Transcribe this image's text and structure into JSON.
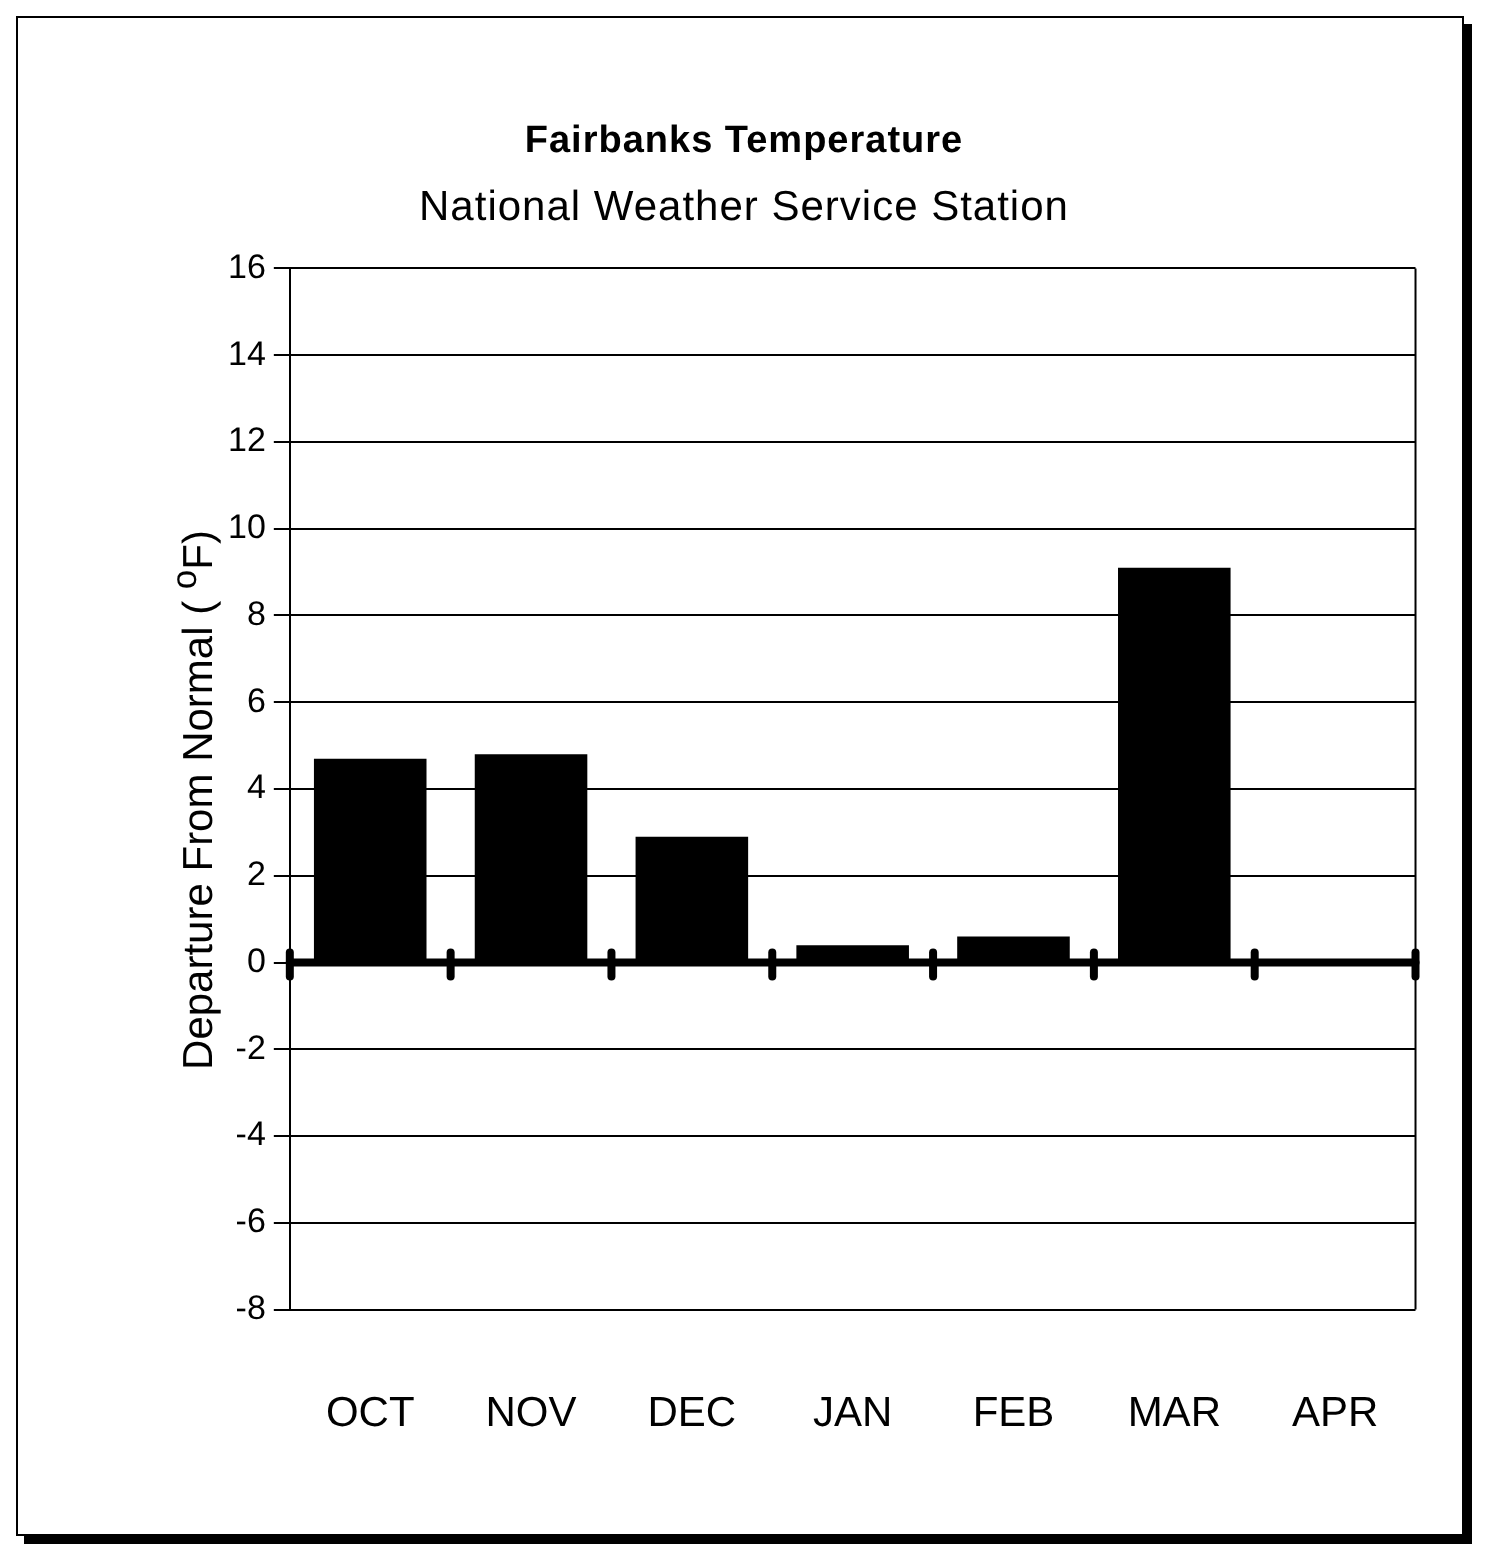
{
  "chart_data": {
    "type": "bar",
    "title": "Fairbanks Temperature",
    "subtitle": "National Weather Service Station",
    "ylabel": "Departure From Normal ( $^{o}$F)",
    "categories": [
      "OCT",
      "NOV",
      "DEC",
      "JAN",
      "FEB",
      "MAR",
      "APR"
    ],
    "values": [
      4.7,
      4.8,
      2.9,
      0.4,
      0.6,
      9.1,
      null
    ],
    "color": "#000000",
    "ylim": [
      -8,
      16
    ],
    "yticks": [
      -8,
      -6,
      -4,
      -2,
      0,
      2,
      4,
      6,
      8,
      10,
      12,
      14,
      16
    ],
    "grid": "y"
  }
}
